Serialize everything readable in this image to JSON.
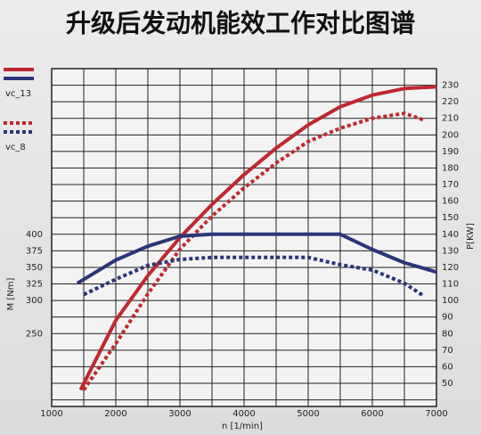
{
  "chart_data": {
    "type": "line",
    "title": "升级后发动机能效工作对比图谱",
    "x_label": "n [1/min]",
    "y_label": "M [Nm]",
    "y2_label": "P[KW]",
    "xlim": [
      1000,
      7000
    ],
    "xticks": [
      1000,
      2000,
      3000,
      4000,
      5000,
      6000,
      7000
    ],
    "ylim": [
      140,
      650
    ],
    "yticks": [
      250,
      300,
      325,
      350,
      375,
      400
    ],
    "y2lim": [
      36,
      240
    ],
    "y2ticks": [
      50,
      60,
      70,
      80,
      90,
      100,
      110,
      120,
      130,
      140,
      150,
      160,
      170,
      180,
      190,
      200,
      210,
      220,
      230
    ],
    "grid": true,
    "legend": "left",
    "series": [
      {
        "name": "vc_13",
        "color": "#c0272d",
        "style": "solid",
        "axis": "y2",
        "x": [
          1450,
          2000,
          2500,
          3000,
          3500,
          4000,
          4500,
          5000,
          5500,
          6000,
          6500,
          7000
        ],
        "values": [
          46,
          88,
          115,
          138,
          158,
          176,
          192,
          206,
          217,
          224,
          228,
          229
        ]
      },
      {
        "name": "vc_8",
        "color": "#c0272d",
        "style": "dotted",
        "axis": "y2",
        "x": [
          1500,
          2000,
          2500,
          3000,
          3500,
          4000,
          4500,
          5000,
          5500,
          6000,
          6500,
          6800
        ],
        "values": [
          46,
          74,
          104,
          131,
          151,
          168,
          183,
          196,
          204,
          210,
          213,
          209
        ]
      },
      {
        "name": "vc_13",
        "color": "#2b3577",
        "style": "solid",
        "axis": "y",
        "x": [
          1400,
          2000,
          2500,
          3000,
          3500,
          4000,
          5000,
          5500,
          6000,
          6500,
          7000
        ],
        "values": [
          326,
          361,
          382,
          397,
          400,
          400,
          400,
          400,
          377,
          357,
          343
        ]
      },
      {
        "name": "vc_8",
        "color": "#2b3577",
        "style": "dotted",
        "axis": "y",
        "x": [
          1500,
          2000,
          2500,
          3000,
          3500,
          5000,
          5500,
          6000,
          6500,
          6800
        ],
        "values": [
          309,
          332,
          353,
          362,
          365,
          365,
          354,
          346,
          326,
          307
        ]
      }
    ]
  }
}
